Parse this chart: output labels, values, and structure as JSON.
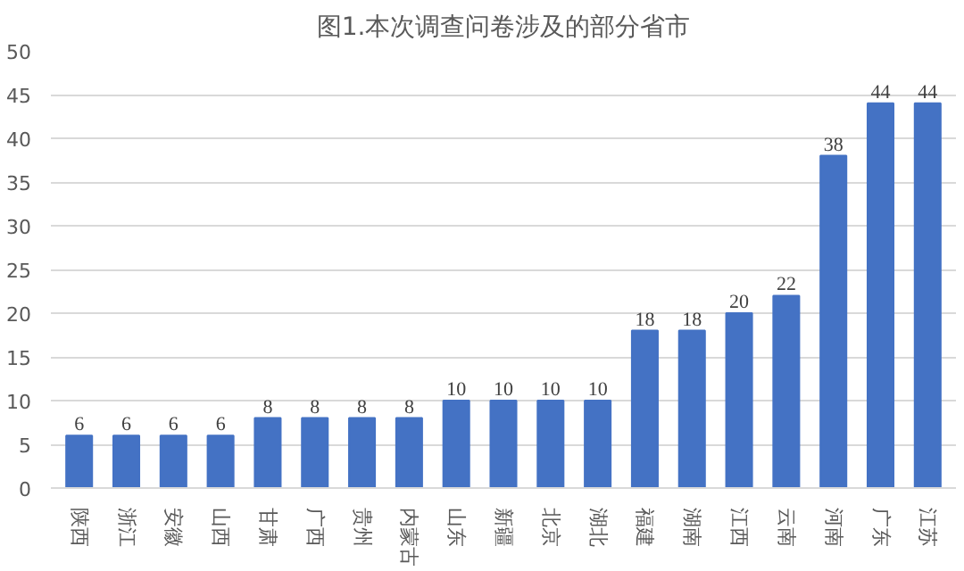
{
  "chart_data": {
    "type": "bar",
    "title": "图1.本次调查问卷涉及的部分省市",
    "categories": [
      "陕西",
      "浙江",
      "安徽",
      "山西",
      "甘肃",
      "广西",
      "贵州",
      "内蒙古",
      "山东",
      "新疆",
      "北京",
      "湖北",
      "福建",
      "湖南",
      "江西",
      "云南",
      "河南",
      "广东",
      "江苏"
    ],
    "values": [
      6,
      6,
      6,
      6,
      8,
      8,
      8,
      8,
      10,
      10,
      10,
      10,
      18,
      18,
      20,
      22,
      38,
      44,
      44
    ],
    "color": "#4472c4",
    "ylim": [
      0,
      50
    ],
    "yticks": [
      0,
      5,
      10,
      15,
      20,
      25,
      30,
      35,
      40,
      45,
      50
    ],
    "grid": "y",
    "data_labels": true
  }
}
